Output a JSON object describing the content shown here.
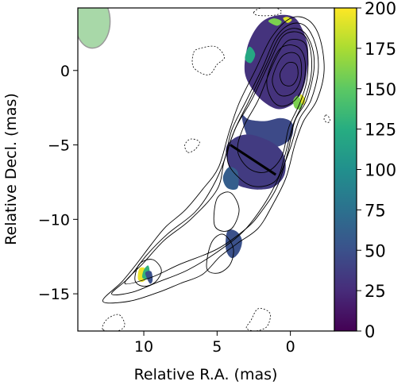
{
  "chart_data": {
    "type": "heatmap",
    "title": "",
    "xlabel": "Relative R.A. (mas)",
    "ylabel": "Relative Decl. (mas)",
    "xlim": [
      14.5,
      -3
    ],
    "ylim": [
      -17.5,
      4.2
    ],
    "x_ticks": [
      {
        "value": 10,
        "label": "10"
      },
      {
        "value": 5,
        "label": "5"
      },
      {
        "value": 0,
        "label": "0"
      }
    ],
    "y_ticks": [
      {
        "value": 0,
        "label": "0"
      },
      {
        "value": -5,
        "label": "−5"
      },
      {
        "value": -10,
        "label": "−10"
      },
      {
        "value": -15,
        "label": "−15"
      }
    ],
    "grid": false,
    "colorbar": {
      "colormap": "viridis",
      "min": 0,
      "max": 200,
      "ticks": [
        {
          "value": 0,
          "label": "0"
        },
        {
          "value": 25,
          "label": "25"
        },
        {
          "value": 50,
          "label": "50"
        },
        {
          "value": 75,
          "label": "75"
        },
        {
          "value": 100,
          "label": "100"
        },
        {
          "value": 125,
          "label": "125"
        },
        {
          "value": 150,
          "label": "150"
        },
        {
          "value": 175,
          "label": "175"
        },
        {
          "value": 200,
          "label": "200"
        }
      ]
    },
    "beam": {
      "x": 13.5,
      "y": 3.3,
      "major": 1.8,
      "minor": 1.2,
      "color": "#a8d8a8"
    },
    "slice_line": {
      "x1": 4.1,
      "y1": -5.0,
      "x2": 1.0,
      "y2": -7.0
    },
    "contour_levels_positive": [
      {
        "color": "#000000",
        "points": [
          [
            12.8,
            -15.5
          ],
          [
            11.5,
            -14.2
          ],
          [
            10.5,
            -13.0
          ],
          [
            9.5,
            -11.7
          ],
          [
            8.5,
            -10.5
          ],
          [
            7.2,
            -9.4
          ],
          [
            6.0,
            -8.0
          ],
          [
            4.9,
            -6.5
          ],
          [
            4.2,
            -4.2
          ],
          [
            3.5,
            -2.2
          ],
          [
            2.4,
            0.0
          ],
          [
            1.3,
            2.2
          ],
          [
            0.0,
            3.5
          ],
          [
            -1.2,
            3.4
          ],
          [
            -2.0,
            2.2
          ],
          [
            -2.3,
            0.0
          ],
          [
            -1.8,
            -2.0
          ],
          [
            -0.9,
            -3.4
          ],
          [
            -0.3,
            -5.0
          ],
          [
            0.3,
            -7.2
          ],
          [
            1.2,
            -9.0
          ],
          [
            2.2,
            -10.6
          ],
          [
            3.6,
            -11.6
          ],
          [
            4.8,
            -12.5
          ],
          [
            6.0,
            -13.7
          ],
          [
            7.5,
            -14.3
          ],
          [
            9.0,
            -14.9
          ],
          [
            11.0,
            -15.5
          ]
        ]
      },
      {
        "color": "#000000",
        "points": [
          [
            12.2,
            -15.0
          ],
          [
            11.0,
            -13.9
          ],
          [
            9.8,
            -12.4
          ],
          [
            8.4,
            -11.0
          ],
          [
            6.5,
            -9.5
          ],
          [
            5.3,
            -7.8
          ],
          [
            4.5,
            -6.0
          ],
          [
            4.0,
            -4.0
          ],
          [
            3.0,
            -2.0
          ],
          [
            1.9,
            0.2
          ],
          [
            1.0,
            2.2
          ],
          [
            0.0,
            3.1
          ],
          [
            -1.0,
            3.0
          ],
          [
            -1.7,
            1.8
          ],
          [
            -1.9,
            0.0
          ],
          [
            -1.4,
            -2.0
          ],
          [
            -0.6,
            -3.3
          ],
          [
            0.0,
            -5.2
          ],
          [
            0.8,
            -7.2
          ],
          [
            1.8,
            -9.0
          ],
          [
            3.2,
            -10.8
          ],
          [
            5.0,
            -12.2
          ],
          [
            7.0,
            -13.4
          ],
          [
            9.0,
            -14.2
          ],
          [
            10.8,
            -14.9
          ]
        ]
      },
      {
        "color": "#000000",
        "points": [
          [
            11.3,
            -14.3
          ],
          [
            10.0,
            -12.9
          ],
          [
            8.6,
            -11.4
          ],
          [
            6.8,
            -10.0
          ],
          [
            5.0,
            -8.0
          ],
          [
            4.5,
            -6.0
          ],
          [
            3.8,
            -4.0
          ],
          [
            2.7,
            -1.8
          ],
          [
            1.6,
            0.5
          ],
          [
            0.8,
            2.2
          ],
          [
            0.0,
            2.8
          ],
          [
            -0.9,
            2.6
          ],
          [
            -1.5,
            1.5
          ],
          [
            -1.6,
            0.0
          ],
          [
            -1.1,
            -2.0
          ],
          [
            -0.3,
            -3.4
          ],
          [
            0.2,
            -5.6
          ],
          [
            0.9,
            -7.8
          ],
          [
            2.0,
            -9.5
          ],
          [
            3.0,
            -10.6
          ],
          [
            5.0,
            -12.0
          ],
          [
            7.5,
            -13.0
          ],
          [
            9.5,
            -13.9
          ]
        ]
      },
      {
        "color": "#000000",
        "points": [
          [
            4.3,
            -6.0
          ],
          [
            3.8,
            -4.0
          ],
          [
            2.6,
            -1.9
          ],
          [
            1.4,
            0.6
          ],
          [
            0.6,
            2.2
          ],
          [
            -0.2,
            2.6
          ],
          [
            -1.0,
            2.3
          ],
          [
            -1.4,
            1.2
          ],
          [
            -1.4,
            -0.4
          ],
          [
            -0.9,
            -2.1
          ],
          [
            -0.2,
            -3.6
          ],
          [
            0.4,
            -5.8
          ],
          [
            1.0,
            -7.4
          ],
          [
            2.3,
            -7.8
          ],
          [
            3.4,
            -7.3
          ]
        ]
      },
      {
        "color": "#000000",
        "points": [
          [
            3.6,
            -5.4
          ],
          [
            3.2,
            -3.8
          ],
          [
            2.2,
            -2.0
          ],
          [
            1.2,
            0.4
          ],
          [
            0.4,
            1.8
          ],
          [
            -0.3,
            2.1
          ],
          [
            -1.0,
            1.8
          ],
          [
            -1.2,
            0.8
          ],
          [
            -1.1,
            -0.8
          ],
          [
            -0.6,
            -2.3
          ],
          [
            0.1,
            -3.8
          ],
          [
            0.6,
            -5.8
          ],
          [
            1.6,
            -6.8
          ],
          [
            2.8,
            -6.6
          ]
        ]
      },
      {
        "color": "#000000",
        "points": [
          [
            1.6,
            -0.6
          ],
          [
            0.9,
            1.2
          ],
          [
            0.2,
            1.7
          ],
          [
            -0.6,
            1.5
          ],
          [
            -1.0,
            0.6
          ],
          [
            -0.9,
            -0.9
          ],
          [
            -0.3,
            -2.0
          ],
          [
            0.6,
            -2.4
          ],
          [
            1.3,
            -1.9
          ]
        ]
      },
      {
        "color": "#000000",
        "points": [
          [
            1.2,
            -0.4
          ],
          [
            0.6,
            0.9
          ],
          [
            -0.2,
            1.2
          ],
          [
            -0.7,
            0.7
          ],
          [
            -0.7,
            -0.6
          ],
          [
            -0.2,
            -1.5
          ],
          [
            0.6,
            -1.7
          ],
          [
            1.1,
            -1.2
          ]
        ]
      },
      {
        "color": "#000000",
        "points": [
          [
            0.7,
            -0.2
          ],
          [
            0.2,
            0.5
          ],
          [
            -0.4,
            0.4
          ],
          [
            -0.5,
            -0.4
          ],
          [
            -0.1,
            -1.0
          ],
          [
            0.5,
            -0.9
          ]
        ]
      },
      {
        "color": "#000000",
        "points": [
          [
            10.6,
            -14.1
          ],
          [
            10.3,
            -13.0
          ],
          [
            9.4,
            -12.7
          ],
          [
            8.8,
            -13.4
          ],
          [
            9.2,
            -14.2
          ],
          [
            10.0,
            -14.5
          ]
        ]
      },
      {
        "color": "#000000",
        "points": [
          [
            5.7,
            -13.3
          ],
          [
            5.4,
            -11.6
          ],
          [
            4.6,
            -11.0
          ],
          [
            3.9,
            -11.9
          ],
          [
            4.1,
            -13.0
          ],
          [
            4.9,
            -13.6
          ]
        ]
      },
      {
        "color": "#000000",
        "points": [
          [
            5.2,
            -10.3
          ],
          [
            5.0,
            -8.6
          ],
          [
            4.1,
            -8.2
          ],
          [
            3.5,
            -9.3
          ],
          [
            3.9,
            -10.5
          ],
          [
            4.6,
            -10.8
          ]
        ]
      }
    ],
    "contour_levels_negative": [
      {
        "color": "#000000",
        "points": [
          [
            6.6,
            1.2
          ],
          [
            6.1,
            1.5
          ],
          [
            5.1,
            1.6
          ],
          [
            4.5,
            0.9
          ],
          [
            5.0,
            0.4
          ],
          [
            5.6,
            -0.3
          ],
          [
            6.6,
            0.2
          ]
        ]
      },
      {
        "color": "#000000",
        "points": [
          [
            7.0,
            -5.5
          ],
          [
            6.5,
            -5.3
          ],
          [
            6.2,
            -4.8
          ],
          [
            6.8,
            -4.6
          ],
          [
            7.2,
            -5.0
          ]
        ]
      },
      {
        "color": "#000000",
        "points": [
          [
            2.5,
            3.9
          ],
          [
            2.0,
            4.2
          ],
          [
            1.0,
            4.2
          ],
          [
            0.6,
            3.9
          ],
          [
            1.2,
            3.7
          ],
          [
            2.2,
            3.7
          ]
        ]
      },
      {
        "color": "#000000",
        "points": [
          [
            12.8,
            -17.4
          ],
          [
            12.5,
            -16.7
          ],
          [
            11.7,
            -16.4
          ],
          [
            11.3,
            -17.1
          ],
          [
            11.8,
            -17.5
          ]
        ]
      },
      {
        "color": "#000000",
        "points": [
          [
            3.0,
            -17.3
          ],
          [
            2.7,
            -16.8
          ],
          [
            2.2,
            -16.0
          ],
          [
            1.4,
            -16.3
          ],
          [
            1.6,
            -17.2
          ],
          [
            2.4,
            -17.5
          ]
        ]
      },
      {
        "color": "#000000",
        "points": [
          [
            -2.4,
            -3.0
          ],
          [
            -2.6,
            -3.1
          ],
          [
            -2.7,
            -3.4
          ],
          [
            -2.5,
            -3.5
          ],
          [
            -2.3,
            -3.3
          ]
        ]
      }
    ],
    "image_regions": [
      {
        "value": 30,
        "points": [
          [
            3.1,
            -0.2
          ],
          [
            3.0,
            1.3
          ],
          [
            2.6,
            2.4
          ],
          [
            1.9,
            3.3
          ],
          [
            0.9,
            3.7
          ],
          [
            -0.2,
            3.6
          ],
          [
            -0.8,
            2.8
          ],
          [
            -1.2,
            1.5
          ],
          [
            -1.1,
            -0.3
          ],
          [
            -0.7,
            -1.6
          ],
          [
            -0.1,
            -2.3
          ],
          [
            0.8,
            -2.6
          ],
          [
            1.7,
            -2.2
          ],
          [
            2.5,
            -1.4
          ]
        ]
      },
      {
        "value": 45,
        "points": [
          [
            3.3,
            -3.0
          ],
          [
            2.8,
            -3.3
          ],
          [
            1.7,
            -3.4
          ],
          [
            0.7,
            -3.2
          ],
          [
            0.0,
            -3.4
          ],
          [
            -0.2,
            -3.9
          ],
          [
            0.0,
            -4.6
          ],
          [
            0.8,
            -5.1
          ],
          [
            1.8,
            -5.2
          ],
          [
            2.7,
            -4.8
          ],
          [
            3.1,
            -4.0
          ]
        ]
      },
      {
        "value": 35,
        "points": [
          [
            4.1,
            -6.8
          ],
          [
            4.4,
            -5.3
          ],
          [
            3.9,
            -4.6
          ],
          [
            3.0,
            -4.3
          ],
          [
            2.0,
            -4.5
          ],
          [
            1.0,
            -5.0
          ],
          [
            0.4,
            -5.8
          ],
          [
            0.4,
            -7.0
          ],
          [
            1.1,
            -7.8
          ],
          [
            2.1,
            -8.0
          ],
          [
            3.0,
            -7.9
          ],
          [
            3.7,
            -7.6
          ]
        ]
      },
      {
        "value": 60,
        "points": [
          [
            4.6,
            -7.2
          ],
          [
            4.3,
            -7.9
          ],
          [
            3.6,
            -7.9
          ],
          [
            3.6,
            -6.8
          ],
          [
            4.2,
            -6.5
          ]
        ]
      },
      {
        "value": 120,
        "points": [
          [
            3.1,
            0.8
          ],
          [
            2.8,
            1.6
          ],
          [
            2.4,
            1.1
          ],
          [
            2.7,
            0.5
          ]
        ]
      },
      {
        "value": 160,
        "points": [
          [
            1.5,
            3.3
          ],
          [
            1.1,
            3.5
          ],
          [
            0.6,
            3.3
          ],
          [
            0.9,
            3.0
          ]
        ]
      },
      {
        "value": 190,
        "points": [
          [
            0.5,
            3.5
          ],
          [
            0.2,
            3.6
          ],
          [
            -0.1,
            3.4
          ],
          [
            0.2,
            3.2
          ]
        ]
      },
      {
        "value": 160,
        "points": [
          [
            -0.5,
            -1.7
          ],
          [
            -0.8,
            -2.2
          ],
          [
            -0.7,
            -2.6
          ],
          [
            -0.3,
            -2.5
          ],
          [
            -0.2,
            -2.0
          ]
        ]
      },
      {
        "value": 190,
        "points": [
          [
            -0.7,
            -1.6
          ],
          [
            -1.0,
            -1.9
          ],
          [
            -0.9,
            -2.3
          ],
          [
            -0.7,
            -2.1
          ]
        ]
      },
      {
        "value": 50,
        "points": [
          [
            4.3,
            -10.8
          ],
          [
            4.4,
            -12.0
          ],
          [
            4.0,
            -12.6
          ],
          [
            3.5,
            -12.2
          ],
          [
            3.3,
            -11.4
          ],
          [
            3.7,
            -10.8
          ]
        ]
      },
      {
        "value": 195,
        "points": [
          [
            10.3,
            -13.3
          ],
          [
            10.4,
            -14.0
          ],
          [
            10.1,
            -14.2
          ],
          [
            9.8,
            -13.9
          ],
          [
            9.9,
            -13.3
          ]
        ]
      },
      {
        "value": 130,
        "points": [
          [
            10.0,
            -13.4
          ],
          [
            10.1,
            -13.9
          ],
          [
            9.8,
            -14.0
          ],
          [
            9.6,
            -13.6
          ],
          [
            9.7,
            -13.1
          ]
        ]
      },
      {
        "value": 50,
        "points": [
          [
            9.9,
            -13.6
          ],
          [
            9.6,
            -14.3
          ],
          [
            9.4,
            -14.1
          ],
          [
            9.5,
            -13.5
          ]
        ]
      }
    ]
  }
}
